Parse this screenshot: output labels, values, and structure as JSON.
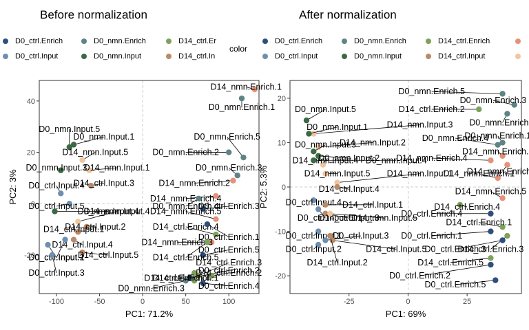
{
  "chart_data": [
    {
      "type": "scatter",
      "title": "Before normalization",
      "xlabel": "PC1: 71.2%",
      "ylabel": "PC2: 3%",
      "xlim": [
        -120,
        135
      ],
      "ylim": [
        -35,
        48
      ],
      "xticks": [
        -100,
        -50,
        0,
        50,
        100
      ],
      "xtick_labels": [
        "-100",
        "-50",
        "0",
        "50",
        "100"
      ],
      "yticks": [
        -20,
        0,
        20,
        40
      ],
      "ytick_labels": [
        "-20",
        "0",
        "20",
        "40"
      ],
      "points": [
        {
          "label": "D14_nmn.Enrich.1",
          "group": "D14_nmn.Enrich",
          "x": 130,
          "y": 44.5,
          "lx": 120,
          "ly": 45.5
        },
        {
          "label": "D0_nmn.Enrich.1",
          "group": "D0_nmn.Enrich",
          "x": 115,
          "y": 41,
          "lx": 115,
          "ly": 37.5
        },
        {
          "label": "D0_nmn.Input.5",
          "group": "D0_nmn.Input",
          "x": -85,
          "y": 22,
          "lx": -85,
          "ly": 29
        },
        {
          "label": "D0_nmn.Input.1",
          "group": "D0_nmn.Input",
          "x": -80,
          "y": 23,
          "lx": -45,
          "ly": 26
        },
        {
          "label": "D0_nmn.Enrich.5",
          "group": "D0_nmn.Enrich",
          "x": 117,
          "y": 18,
          "lx": 98,
          "ly": 26
        },
        {
          "label": "D0_nmn.Enrich.2",
          "group": "D0_nmn.Enrich",
          "x": 100,
          "y": 20,
          "lx": 50,
          "ly": 20
        },
        {
          "label": "D14_nmn.Input.5",
          "group": "D14_nmn.Input",
          "x": -70,
          "y": 17,
          "lx": -55,
          "ly": 20
        },
        {
          "label": "D0_nmn.Input.3",
          "group": "D0_nmn.Input",
          "x": -95,
          "y": 13,
          "lx": -100,
          "ly": 14
        },
        {
          "label": "D14_nmn.Input.1",
          "group": "D14_nmn.Input",
          "x": -62,
          "y": 13,
          "lx": -30,
          "ly": 14
        },
        {
          "label": "D0_nmn.Enrich.3",
          "group": "D0_nmn.Enrich",
          "x": 110,
          "y": 11,
          "lx": 100,
          "ly": 14
        },
        {
          "label": "D14_nmn.Enrich.2",
          "group": "D14_nmn.Enrich",
          "x": 105,
          "y": 9,
          "lx": 60,
          "ly": 8
        },
        {
          "label": "D0_ctrl.Input.4",
          "group": "D0_ctrl.Input",
          "x": -95,
          "y": 4,
          "lx": -100,
          "ly": 7
        },
        {
          "label": "D14_ctrl.Input.3",
          "group": "D14_ctrl.Input",
          "x": -60,
          "y": 7,
          "lx": -45,
          "ly": 8
        },
        {
          "label": "D14_nmn.Enrich.4",
          "group": "D14_nmn.Enrich",
          "x": 85,
          "y": 3,
          "lx": 50,
          "ly": 2
        },
        {
          "label": "D0_nmn.Enrich.4",
          "group": "D0_nmn.Enrich",
          "x": 65,
          "y": 2,
          "lx": 50,
          "ly": -1
        },
        {
          "label": "D0_ctrl.Input.5",
          "group": "D0_ctrl.Input",
          "x": -85,
          "y": 0,
          "lx": -100,
          "ly": -1
        },
        {
          "label": "D0_nmn.Input.4",
          "group": "D0_nmn.Input",
          "x": -102,
          "y": -3,
          "lx": -40,
          "ly": -3
        },
        {
          "label": "D0_ctrl.Enrich.3",
          "group": "D0_ctrl.Enrich",
          "x": 70,
          "y": -2,
          "lx": 100,
          "ly": -1
        },
        {
          "label": "D14_nmn.Enrich.5",
          "group": "D14_nmn.Enrich",
          "x": 85,
          "y": -6,
          "lx": 50,
          "ly": -3
        },
        {
          "label": "D14_nmn.Input.4",
          "group": "D14_nmn.Input",
          "x": -75,
          "y": -7,
          "lx": -30,
          "ly": -3
        },
        {
          "label": "D14_ctrl.Input.2",
          "group": "D14_ctrl.Input",
          "x": -65,
          "y": -9,
          "lx": -55,
          "ly": -9
        },
        {
          "label": "D14_ctrl.Input.1",
          "group": "D14_ctrl.Input",
          "x": -75,
          "y": -11,
          "lx": -80,
          "ly": -10
        },
        {
          "label": "D14_ctrl.Enrich.4",
          "group": "D14_ctrl.Enrich",
          "x": 85,
          "y": -12,
          "lx": 50,
          "ly": -9
        },
        {
          "label": "D0_ctrl.Enrich.1",
          "group": "D0_ctrl.Enrich",
          "x": 75,
          "y": -8,
          "lx": 100,
          "ly": -13
        },
        {
          "label": "D14_ctrl.Input.4",
          "group": "D14_ctrl.Input",
          "x": -80,
          "y": -14,
          "lx": -70,
          "ly": -16
        },
        {
          "label": "D14_nmn.Enrich.3",
          "group": "D14_nmn.Enrich",
          "x": 80,
          "y": -15,
          "lx": 40,
          "ly": -15
        },
        {
          "label": "D0_ctrl.Input.2",
          "group": "D0_ctrl.Input",
          "x": -90,
          "y": -14,
          "lx": -100,
          "ly": -21
        },
        {
          "label": "D0_ctrl.Enrich.5",
          "group": "D0_ctrl.Enrich",
          "x": 70,
          "y": -20,
          "lx": 100,
          "ly": -18
        },
        {
          "label": "D14_ctrl.Input.5",
          "group": "D14_ctrl.Input",
          "x": -70,
          "y": -19,
          "lx": -40,
          "ly": -20
        },
        {
          "label": "D0_ctrl.Input.1",
          "group": "D0_ctrl.Input",
          "x": -110,
          "y": -16,
          "lx": -100,
          "ly": -21
        },
        {
          "label": "D0_ctrl.Input.3",
          "group": "D0_ctrl.Input",
          "x": -105,
          "y": -20,
          "lx": -100,
          "ly": -27
        },
        {
          "label": "D14_ctrl.Enrich.5",
          "group": "D14_ctrl.Enrich",
          "x": 75,
          "y": -15,
          "lx": 50,
          "ly": -21
        },
        {
          "label": "D0_ctrl.Enrich.2",
          "group": "D0_ctrl.Enrich",
          "x": 55,
          "y": -29,
          "lx": 100,
          "ly": -26
        },
        {
          "label": "D14_ctrl.Enrich.3",
          "group": "D14_ctrl.Enrich",
          "x": 65,
          "y": -28,
          "lx": 100,
          "ly": -23
        },
        {
          "label": "D14_ctrl.Enrich.1",
          "group": "D14_ctrl.Enrich",
          "x": 60,
          "y": -27,
          "lx": 50,
          "ly": -29
        },
        {
          "label": "D14_ctrl.Enrich.2",
          "group": "D14_ctrl.Enrich",
          "x": 80,
          "y": -28,
          "lx": 100,
          "ly": -27
        },
        {
          "label": "D0_ctrl.Enrich.4",
          "group": "D0_ctrl.Enrich",
          "x": 70,
          "y": -31,
          "lx": 100,
          "ly": -32
        },
        {
          "label": "D0_nmn.Enrich.3",
          "group": "D0_nmn.Enrich",
          "x": 50,
          "y": -30,
          "lx": 10,
          "ly": -33
        },
        {
          "label": "D14_ctrl.Enrich.4",
          "group": "D14_ctrl.Enrich",
          "x": 60,
          "y": -30,
          "lx": 40,
          "ly": -29
        }
      ]
    },
    {
      "type": "scatter",
      "title": "After normalization",
      "xlabel": "PC1: 69%",
      "ylabel": "PC2: 5.3%",
      "xlim": [
        -50,
        48
      ],
      "ylim": [
        -24,
        24
      ],
      "xticks": [
        -25,
        0,
        25
      ],
      "xtick_labels": [
        "-25",
        "0",
        "25"
      ],
      "yticks": [
        -20,
        -10,
        0,
        10,
        20
      ],
      "ytick_labels": [
        "-20",
        "-10",
        "0",
        "10",
        "20"
      ],
      "points": [
        {
          "label": "D0_nmn.Enrich.5",
          "group": "D0_nmn.Enrich",
          "x": 40,
          "y": 21,
          "lx": 10,
          "ly": 21.5
        },
        {
          "label": "D0_nmn.Enrich.3",
          "group": "D0_nmn.Enrich",
          "x": 45,
          "y": 18.5,
          "lx": 36,
          "ly": 19.5
        },
        {
          "label": "D14_ctrl.Enrich.2",
          "group": "D14_ctrl.Enrich",
          "x": 30,
          "y": 17.5,
          "lx": 10,
          "ly": 17.5
        },
        {
          "label": "D0_nmn.Input.5",
          "group": "D0_nmn.Input",
          "x": -43,
          "y": 15,
          "lx": -35,
          "ly": 17.5
        },
        {
          "label": "D0_nmn.Enrich.2",
          "group": "D0_nmn.Enrich",
          "x": 42,
          "y": 16.5,
          "lx": 40,
          "ly": 14.5
        },
        {
          "label": "D14_nmn.Input.3",
          "group": "D14_nmn.Input",
          "x": -40,
          "y": 12,
          "lx": 5,
          "ly": 14
        },
        {
          "label": "D0_nmn.Input.1",
          "group": "D0_nmn.Input",
          "x": -42,
          "y": 12,
          "lx": -30,
          "ly": 13.5
        },
        {
          "label": "D0_nmn.Enrich.1",
          "group": "D0_nmn.Enrich",
          "x": 40,
          "y": 10,
          "lx": 38,
          "ly": 11.5
        },
        {
          "label": "D14_nmn.Input.2",
          "group": "D14_nmn.Input",
          "x": -38,
          "y": 9,
          "lx": -15,
          "ly": 10
        },
        {
          "label": "D0_nmn.Enrich.4",
          "group": "D0_nmn.Enrich",
          "x": 38,
          "y": 9.5,
          "lx": 20,
          "ly": 11
        },
        {
          "label": "D0_nmn.Input.3",
          "group": "D0_nmn.Input",
          "x": -40,
          "y": 8,
          "lx": -35,
          "ly": 9.5
        },
        {
          "label": "D14_nmn.Enrich.3",
          "group": "D14_nmn.Enrich",
          "x": 40,
          "y": 7,
          "lx": 38,
          "ly": 8
        },
        {
          "label": "D0_nmn.Input.2",
          "group": "D0_nmn.Input",
          "x": -38,
          "y": 7,
          "lx": -25,
          "ly": 6.5
        },
        {
          "label": "D14_nmn.Enrich.4",
          "group": "D14_nmn.Enrich",
          "x": 35,
          "y": 6,
          "lx": 10,
          "ly": 6.5
        },
        {
          "label": "D14_nmn.Enrich.2",
          "group": "D14_nmn.Enrich",
          "x": 42,
          "y": 5,
          "lx": 40,
          "ly": 3.5
        },
        {
          "label": "D14_nmn.Input.4",
          "group": "D14_nmn.Input",
          "x": -36,
          "y": 5,
          "lx": -35,
          "ly": 6
        },
        {
          "label": "D0_nmn.Input.4",
          "group": "D0_nmn.Input",
          "x": -40,
          "y": 6,
          "lx": -5,
          "ly": 6
        },
        {
          "label": "D14_nmn.Input.5",
          "group": "D14_nmn.Input",
          "x": -35,
          "y": 3,
          "lx": -30,
          "ly": 3
        },
        {
          "label": "D14_nmn.Input.1",
          "group": "D14_nmn.Input",
          "x": -30,
          "y": 1,
          "lx": 5,
          "ly": 3
        },
        {
          "label": "D14_nmn.Enrich.1",
          "group": "D14_nmn.Enrich",
          "x": 38,
          "y": 2,
          "lx": 30,
          "ly": 3
        },
        {
          "label": "D14_ctrl.Input.4",
          "group": "D14_ctrl.Input",
          "x": -30,
          "y": 0,
          "lx": -25,
          "ly": -0.5
        },
        {
          "label": "D14_nmn.Enrich.5",
          "group": "D14_nmn.Enrich",
          "x": 40,
          "y": -2.5,
          "lx": 35,
          "ly": -1
        },
        {
          "label": "D0_ctrl.Input.4",
          "group": "D0_ctrl.Input",
          "x": -40,
          "y": -3,
          "lx": -40,
          "ly": -3.5
        },
        {
          "label": "D14_ctrl.Input.1",
          "group": "D14_ctrl.Input",
          "x": -35,
          "y": -4,
          "lx": -15,
          "ly": -4
        },
        {
          "label": "D14_ctrl.Enrich.4",
          "group": "D14_ctrl.Enrich",
          "x": 22,
          "y": -4,
          "lx": 25,
          "ly": -4.5
        },
        {
          "label": "D0_ctrl.Input.5",
          "group": "D0_ctrl.Input",
          "x": -38,
          "y": -5,
          "lx": -35,
          "ly": -7
        },
        {
          "label": "D14_ctrl.Input.3",
          "group": "D14_ctrl.Input",
          "x": -35,
          "y": -6,
          "lx": -25,
          "ly": -7
        },
        {
          "label": "D14_nmn.Input.5",
          "group": "D14_nmn.Input",
          "x": -33,
          "y": -6,
          "lx": -10,
          "ly": -7
        },
        {
          "label": "D0_ctrl.Enrich.4",
          "group": "D0_ctrl.Enrich",
          "x": 35,
          "y": -6,
          "lx": 10,
          "ly": -6
        },
        {
          "label": "D14_ctrl.Enrich.1",
          "group": "D14_ctrl.Enrich",
          "x": 40,
          "y": -9,
          "lx": 30,
          "ly": -8
        },
        {
          "label": "D0_ctrl.Input.1",
          "group": "D0_ctrl.Input",
          "x": -38,
          "y": -10,
          "lx": -40,
          "ly": -11
        },
        {
          "label": "D0_ctrl.Input.3",
          "group": "D0_ctrl.Input",
          "x": -35,
          "y": -12,
          "lx": -20,
          "ly": -11
        },
        {
          "label": "D0_ctrl.Enrich.1",
          "group": "D0_ctrl.Enrich",
          "x": 35,
          "y": -10,
          "lx": 10,
          "ly": -11
        },
        {
          "label": "D0_ctrl.Input.2",
          "group": "D0_ctrl.Input",
          "x": -38,
          "y": -13,
          "lx": -40,
          "ly": -14
        },
        {
          "label": "D14_ctrl.Input.5",
          "group": "D14_ctrl.Input",
          "x": -32,
          "y": -12,
          "lx": -5,
          "ly": -14
        },
        {
          "label": "D14_ctrl.Enrich.3",
          "group": "D14_ctrl.Enrich",
          "x": 42,
          "y": -11,
          "lx": 35,
          "ly": -14
        },
        {
          "label": "D0_ctrl.Enrich.3",
          "group": "D0_ctrl.Enrich",
          "x": 40,
          "y": -12,
          "lx": 20,
          "ly": -14
        },
        {
          "label": "D14_ctrl.Input.2",
          "group": "D14_ctrl.Input",
          "x": -33,
          "y": -11,
          "lx": -30,
          "ly": -17
        },
        {
          "label": "D14_ctrl.Enrich.5",
          "group": "D14_ctrl.Enrich",
          "x": 35,
          "y": -16,
          "lx": 18,
          "ly": -17
        },
        {
          "label": "D0_ctrl.Enrich.2",
          "group": "D0_ctrl.Enrich",
          "x": 35,
          "y": -17.5,
          "lx": 5,
          "ly": -20
        },
        {
          "label": "D0_ctrl.Enrich.5",
          "group": "D0_ctrl.Enrich",
          "x": 37,
          "y": -21,
          "lx": 20,
          "ly": -22
        }
      ]
    }
  ],
  "legend": {
    "title": "color",
    "left": [
      {
        "label": "D0_ctrl.Enrich",
        "color": "#2E4F7E"
      },
      {
        "label": "D0_nmn.Enrich",
        "color": "#5E8485"
      },
      {
        "label": "D14_ctrl.Er",
        "color": "#7EA25C"
      },
      {
        "label": "D0_ctrl.Input",
        "color": "#6E8FB0"
      },
      {
        "label": "D0_nmn.Input",
        "color": "#3A6A43"
      },
      {
        "label": "D14_ctrl.In",
        "color": "#B98A6A"
      }
    ],
    "right": [
      {
        "label": "D0_ctrl.Enrich",
        "color": "#2E4F7E"
      },
      {
        "label": "D0_nmn.Enrich",
        "color": "#5E8485"
      },
      {
        "label": "D14_ctrl.Enrich",
        "color": "#7EA25C"
      },
      {
        "label": "",
        "color": "#E6917A"
      },
      {
        "label": "D0_ctrl.Input",
        "color": "#6E8FB0"
      },
      {
        "label": "D0_nmn.Input",
        "color": "#3A6A43"
      },
      {
        "label": "D14_ctrl.Input",
        "color": "#B98A6A"
      },
      {
        "label": "",
        "color": "#F0C6A0"
      }
    ]
  },
  "group_colors": {
    "D0_ctrl.Enrich": "#2E4F7E",
    "D0_nmn.Enrich": "#5E8485",
    "D14_ctrl.Enrich": "#7EA25C",
    "D14_nmn.Enrich": "#E6917A",
    "D0_ctrl.Input": "#6E8FB0",
    "D0_nmn.Input": "#3A6A43",
    "D14_ctrl.Input": "#B98A6A",
    "D14_nmn.Input": "#F0C6A0"
  }
}
